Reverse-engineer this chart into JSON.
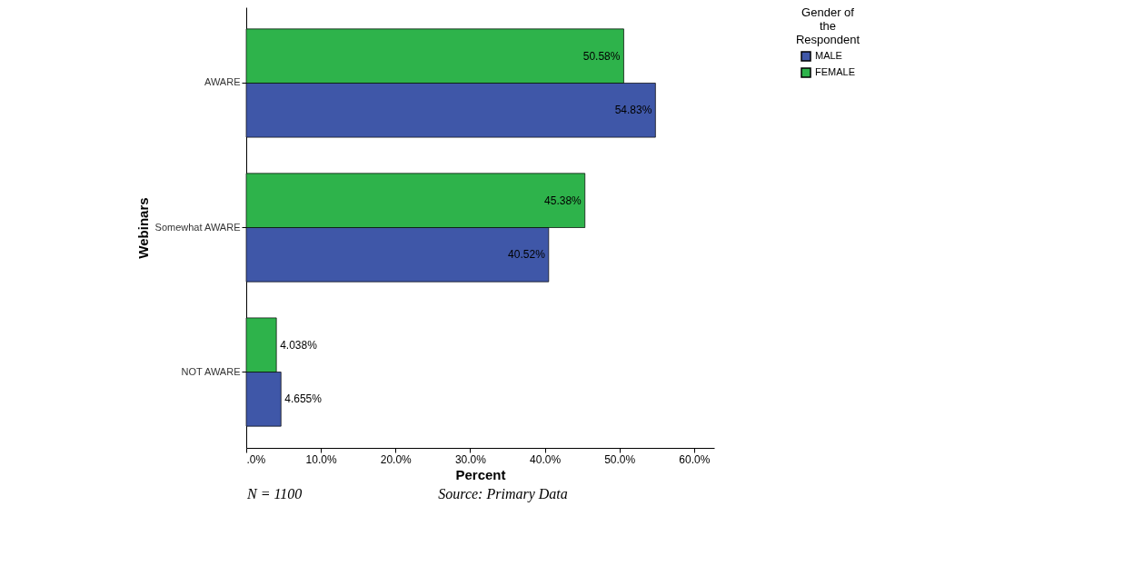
{
  "chart_data": {
    "type": "bar",
    "orientation": "horizontal",
    "xlabel": "Percent",
    "ylabel": "Webinars",
    "legend_title": "Gender of the Respondent",
    "legend": "top right",
    "categories": [
      "AWARE",
      "Somewhat AWARE",
      "NOT AWARE"
    ],
    "series": [
      {
        "name": "MALE",
        "color": "#3f57a8",
        "values": [
          54.83,
          40.52,
          4.655
        ],
        "value_labels": [
          "54.83%",
          "40.52%",
          "4.655%"
        ]
      },
      {
        "name": "FEMALE",
        "color": "#2eb34b",
        "values": [
          50.58,
          45.38,
          4.038
        ],
        "value_labels": [
          "50.58%",
          "45.38%",
          "4.038%"
        ]
      }
    ],
    "xlim": [
      0,
      62.7
    ],
    "xticks": [
      {
        "value": 0,
        "label": ".0%"
      },
      {
        "value": 10,
        "label": "10.0%"
      },
      {
        "value": 20,
        "label": "20.0%"
      },
      {
        "value": 30,
        "label": "30.0%"
      },
      {
        "value": 40,
        "label": "40.0%"
      },
      {
        "value": 50,
        "label": "50.0%"
      },
      {
        "value": 60,
        "label": "60.0%"
      }
    ],
    "annotations": [
      "N = 1100",
      "Source: Primary Data"
    ]
  }
}
